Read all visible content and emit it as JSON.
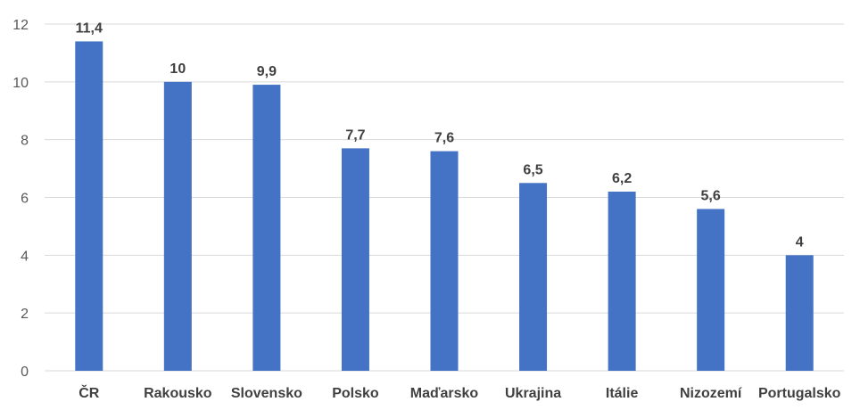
{
  "chart_data": {
    "type": "bar",
    "categories": [
      "ČR",
      "Rakousko",
      "Slovensko",
      "Polsko",
      "Maďarsko",
      "Ukrajina",
      "Itálie",
      "Nizozemí",
      "Portugalsko"
    ],
    "values": [
      11.4,
      10,
      9.9,
      7.7,
      7.6,
      6.5,
      6.2,
      5.6,
      4
    ],
    "data_labels": [
      "11,4",
      "10",
      "9,9",
      "7,7",
      "7,6",
      "6,5",
      "6,2",
      "5,6",
      "4"
    ],
    "y_ticks": [
      0,
      2,
      4,
      6,
      8,
      10,
      12
    ],
    "ylim": [
      0,
      12
    ],
    "grid": true,
    "legend": "none",
    "title": "",
    "xlabel": "",
    "ylabel": "",
    "bar_color": "#4472C4",
    "grid_color": "#d9d9d9"
  }
}
